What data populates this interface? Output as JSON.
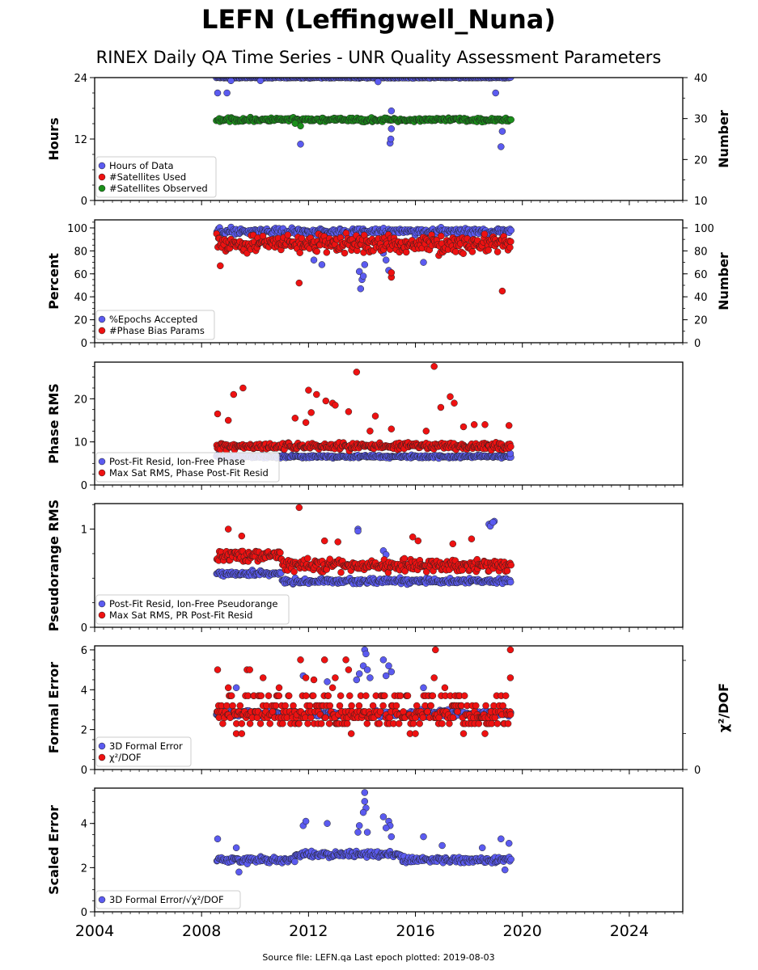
{
  "figure": {
    "title": "LEFN (Leffingwell_Nuna)",
    "subtitle": "RINEX Daily QA Time Series - UNR Quality Assessment Parameters",
    "footer": "Source file: LEFN.qa Last epoch plotted: 2019-08-03"
  },
  "colors": {
    "blue": "#5b5bf0",
    "red": "#ee1111",
    "green": "#1a8f1a",
    "edge": "#222222"
  },
  "chart_data": [
    {
      "id": "hours",
      "type": "scatter",
      "ylabel": "Hours",
      "ylim": [
        0,
        24
      ],
      "yticks": [
        0,
        12,
        24
      ],
      "y2label": "Number",
      "y2lim": [
        10,
        40
      ],
      "y2ticks": [
        10,
        20,
        30,
        40
      ],
      "legend_placement": "lower-left",
      "series": [
        {
          "name": "Hours of Data",
          "color": "blue",
          "axis": "left",
          "x_range": [
            2008.55,
            2019.59
          ],
          "typical": 24,
          "spread": 0.15,
          "outliers": [
            [
              2008.6,
              21
            ],
            [
              2008.95,
              21
            ],
            [
              2009.1,
              23.4
            ],
            [
              2010.2,
              23.4
            ],
            [
              2011.7,
              11
            ],
            [
              2015.1,
              17.5
            ],
            [
              2015.05,
              11.2
            ],
            [
              2015.08,
              12.0
            ],
            [
              2015.1,
              14
            ],
            [
              2019.2,
              10.5
            ],
            [
              2019.25,
              13.5
            ],
            [
              2019.0,
              21
            ],
            [
              2014.6,
              23.2
            ]
          ]
        },
        {
          "name": "#Satellites Used",
          "color": "red",
          "axis": "right",
          "x_range": [
            2008.55,
            2019.59
          ],
          "typical": 30,
          "spread": 0.6,
          "hidden": true,
          "outliers": [
            [
              2019.2,
              31.2
            ]
          ]
        },
        {
          "name": "#Satellites Observed",
          "color": "green",
          "axis": "right",
          "x_range": [
            2008.55,
            2019.59
          ],
          "typical": 29.7,
          "spread": 0.7,
          "outliers": [
            [
              2011.7,
              28.2
            ],
            [
              2011.5,
              28.8
            ]
          ]
        }
      ]
    },
    {
      "id": "percent",
      "type": "scatter",
      "ylabel": "Percent",
      "ylim": [
        0,
        107
      ],
      "yticks": [
        0,
        20,
        40,
        60,
        80,
        100
      ],
      "y2label": "Number",
      "y2lim": [
        0,
        107
      ],
      "y2ticks": [
        0,
        20,
        40,
        60,
        80,
        100
      ],
      "legend_placement": "lower-left",
      "series": [
        {
          "name": "%Epochs Accepted",
          "color": "blue",
          "axis": "left",
          "x_range": [
            2008.55,
            2019.59
          ],
          "typical": 97,
          "spread": 4,
          "outliers": [
            [
              2013.95,
              47
            ],
            [
              2014.0,
              55
            ],
            [
              2013.9,
              62
            ],
            [
              2014.1,
              68
            ],
            [
              2015.0,
              63
            ],
            [
              2014.9,
              72
            ],
            [
              2012.5,
              68
            ],
            [
              2012.2,
              72
            ],
            [
              2016.3,
              70
            ],
            [
              2019.3,
              85
            ],
            [
              2014.05,
              58
            ],
            [
              2014.8,
              78
            ]
          ]
        },
        {
          "name": "#Phase Bias Params",
          "color": "red",
          "axis": "right",
          "x_range": [
            2008.55,
            2019.59
          ],
          "typical": 86,
          "spread": 11,
          "outliers": [
            [
              2011.65,
              52
            ],
            [
              2015.1,
              57
            ],
            [
              2015.1,
              61
            ],
            [
              2019.25,
              45
            ],
            [
              2008.7,
              67
            ]
          ]
        }
      ]
    },
    {
      "id": "phase",
      "type": "scatter",
      "ylabel": "Phase RMS",
      "ylim": [
        0,
        28.5
      ],
      "yticks": [
        0,
        10,
        20
      ],
      "legend_placement": "lower-left",
      "series": [
        {
          "name": "Post-Fit Resid, Ion-Free Phase",
          "color": "blue",
          "axis": "left",
          "x_range": [
            2008.55,
            2019.59
          ],
          "typical": 6.6,
          "spread": 0.5,
          "outliers": [
            [
              2008.6,
              8.5
            ],
            [
              2019.55,
              7.3
            ]
          ]
        },
        {
          "name": "Max Sat RMS, Phase Post-Fit Resid",
          "color": "red",
          "axis": "left",
          "x_range": [
            2008.55,
            2019.59
          ],
          "typical": 9.0,
          "spread": 1.2,
          "outliers": [
            [
              2016.7,
              27.5
            ],
            [
              2013.8,
              26.2
            ],
            [
              2009.2,
              21.0
            ],
            [
              2009.55,
              22.5
            ],
            [
              2012.0,
              22.0
            ],
            [
              2012.3,
              21.0
            ],
            [
              2012.65,
              19.5
            ],
            [
              2016.95,
              18.0
            ],
            [
              2017.3,
              20.5
            ],
            [
              2017.45,
              19.0
            ],
            [
              2008.6,
              16.5
            ],
            [
              2011.5,
              15.5
            ],
            [
              2012.1,
              16.8
            ],
            [
              2013.5,
              17.0
            ],
            [
              2014.5,
              16.0
            ],
            [
              2018.2,
              14.0
            ],
            [
              2018.6,
              14.0
            ],
            [
              2019.5,
              13.8
            ],
            [
              2014.3,
              12.5
            ],
            [
              2015.1,
              13.0
            ],
            [
              2016.4,
              12.5
            ],
            [
              2017.8,
              13.5
            ],
            [
              2012.9,
              19.0
            ],
            [
              2013.0,
              18.5
            ],
            [
              2009.0,
              15.0
            ],
            [
              2011.9,
              14.5
            ]
          ]
        }
      ]
    },
    {
      "id": "pseudorange",
      "type": "scatter",
      "ylabel": "Pseudorange RMS",
      "ylim": [
        0,
        1.26
      ],
      "yticks": [
        0,
        1
      ],
      "legend_placement": "lower-left",
      "series": [
        {
          "name": "Post-Fit Resid, Ion-Free Pseudorange",
          "color": "blue",
          "axis": "left",
          "x_range": [
            2008.55,
            2019.59
          ],
          "typical": 0.47,
          "spread": 0.04,
          "outliers": [
            [
              2013.85,
              1.0
            ],
            [
              2013.85,
              0.98
            ],
            [
              2018.75,
              1.05
            ],
            [
              2018.85,
              1.06
            ],
            [
              2018.95,
              1.08
            ],
            [
              2018.8,
              1.03
            ],
            [
              2018.9,
              1.07
            ],
            [
              2014.8,
              0.78
            ],
            [
              2014.9,
              0.74
            ]
          ]
        },
        {
          "name": "Max Sat RMS, PR Post-Fit Resid",
          "color": "red",
          "axis": "left",
          "x_range": [
            2008.55,
            2019.59
          ],
          "typical": 0.63,
          "spread": 0.09,
          "outliers": [
            [
              2011.65,
              1.22
            ],
            [
              2009.0,
              1.0
            ],
            [
              2009.5,
              0.93
            ],
            [
              2015.9,
              0.92
            ],
            [
              2016.1,
              0.88
            ],
            [
              2018.1,
              0.9
            ],
            [
              2012.6,
              0.88
            ],
            [
              2013.1,
              0.87
            ],
            [
              2017.4,
              0.85
            ]
          ]
        }
      ]
    },
    {
      "id": "formal",
      "type": "scatter",
      "ylabel": "Formal Error",
      "ylim": [
        0,
        6.2
      ],
      "yticks": [
        0,
        2,
        4,
        6
      ],
      "y2label": "χ²/DOF",
      "y2ticks": [
        0
      ],
      "legend_placement": "lower-left",
      "series": [
        {
          "name": "3D Formal Error",
          "color": "blue",
          "axis": "left",
          "x_range": [
            2008.55,
            2019.59
          ],
          "typical": 2.8,
          "spread": 0.25,
          "outliers": [
            [
              2014.1,
              6.0
            ],
            [
              2014.15,
              5.8
            ],
            [
              2014.8,
              5.5
            ],
            [
              2014.05,
              5.2
            ],
            [
              2014.2,
              5.0
            ],
            [
              2015.0,
              5.2
            ],
            [
              2015.1,
              4.9
            ],
            [
              2014.9,
              4.7
            ],
            [
              2013.9,
              4.8
            ],
            [
              2011.8,
              4.7
            ],
            [
              2013.8,
              4.5
            ],
            [
              2014.3,
              4.6
            ],
            [
              2012.7,
              4.4
            ],
            [
              2016.3,
              4.1
            ],
            [
              2009.3,
              4.1
            ]
          ]
        },
        {
          "name": "χ²/DOF",
          "color": "red",
          "axis": "left",
          "x_range": [
            2008.55,
            2019.59
          ],
          "levels": [
            2.3,
            2.6,
            2.75,
            2.9,
            3.2,
            3.7
          ],
          "outliers": [
            [
              2008.6,
              5.0
            ],
            [
              2009.7,
              5.0
            ],
            [
              2009.8,
              5.0
            ],
            [
              2011.7,
              5.5
            ],
            [
              2016.75,
              6.0
            ],
            [
              2019.55,
              6.0
            ],
            [
              2019.55,
              4.6
            ],
            [
              2013.4,
              5.5
            ],
            [
              2012.6,
              5.5
            ],
            [
              2010.3,
              4.6
            ],
            [
              2011.9,
              4.6
            ],
            [
              2012.2,
              4.5
            ],
            [
              2013.5,
              5.0
            ],
            [
              2009.0,
              4.1
            ],
            [
              2010.9,
              4.1
            ],
            [
              2009.3,
              1.8
            ],
            [
              2009.5,
              1.8
            ],
            [
              2013.6,
              1.8
            ],
            [
              2015.8,
              1.8
            ],
            [
              2016.0,
              1.8
            ],
            [
              2017.8,
              1.8
            ],
            [
              2018.6,
              1.8
            ],
            [
              2016.7,
              4.6
            ],
            [
              2017.1,
              4.1
            ],
            [
              2012.9,
              4.1
            ],
            [
              2013.0,
              4.6
            ]
          ]
        }
      ]
    },
    {
      "id": "scaled",
      "type": "scatter",
      "ylabel": "Scaled Error",
      "ylim": [
        0,
        5.6
      ],
      "yticks": [
        0,
        2,
        4
      ],
      "legend_placement": "lower-left",
      "series": [
        {
          "name": "3D Formal Error/√χ²/DOF",
          "color": "blue",
          "axis": "left",
          "x_range": [
            2008.55,
            2019.59
          ],
          "typical": 2.35,
          "spread": 0.2,
          "outliers": [
            [
              2014.1,
              5.4
            ],
            [
              2014.1,
              5.0
            ],
            [
              2014.15,
              4.7
            ],
            [
              2014.8,
              4.3
            ],
            [
              2014.05,
              4.5
            ],
            [
              2015.0,
              4.1
            ],
            [
              2015.05,
              3.9
            ],
            [
              2013.9,
              3.9
            ],
            [
              2013.85,
              3.6
            ],
            [
              2011.8,
              3.9
            ],
            [
              2011.9,
              4.1
            ],
            [
              2012.7,
              4.0
            ],
            [
              2014.9,
              3.8
            ],
            [
              2015.1,
              3.4
            ],
            [
              2016.3,
              3.4
            ],
            [
              2008.6,
              3.3
            ],
            [
              2019.2,
              3.3
            ],
            [
              2019.5,
              3.1
            ],
            [
              2014.2,
              3.6
            ],
            [
              2009.3,
              2.9
            ],
            [
              2017.0,
              3.0
            ],
            [
              2018.5,
              2.9
            ],
            [
              2019.35,
              1.9
            ],
            [
              2009.4,
              1.8
            ]
          ]
        }
      ]
    }
  ],
  "x_axis": {
    "xlim": [
      2004,
      2026
    ],
    "ticks": [
      "2004",
      "2008",
      "2012",
      "2016",
      "2020",
      "2024"
    ],
    "tick_values": [
      2004,
      2008,
      2012,
      2016,
      2020,
      2024
    ]
  }
}
